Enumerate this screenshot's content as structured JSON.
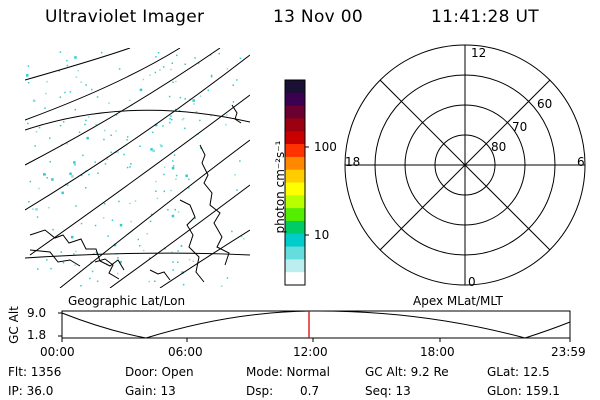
{
  "header": {
    "instrument": "Ultraviolet Imager",
    "date": "13 Nov 00",
    "time": "11:41:28 UT"
  },
  "colorbar": {
    "unit_label": "photon cm⁻²s⁻¹",
    "ticks": [
      "100",
      "10"
    ],
    "colors": [
      "#1a1033",
      "#3b0050",
      "#6a0030",
      "#9a0010",
      "#c80000",
      "#ff3300",
      "#ff8800",
      "#ffcc00",
      "#ffff00",
      "#b8ff00",
      "#55ee00",
      "#00cc66",
      "#00cccc",
      "#66dddd",
      "#bbeeee",
      "#ffffff"
    ]
  },
  "geo_map": {
    "label": "Geographic Lat/Lon",
    "aurora_color": "#33cccc"
  },
  "polar_plot": {
    "label": "Apex MLat/MLT",
    "mlt_labels": {
      "top": "12",
      "left": "18",
      "right": "6",
      "bottom": "0"
    },
    "mlat_labels": [
      "60",
      "70",
      "80"
    ]
  },
  "orbit_plot": {
    "y_axis_label": "GC Alt",
    "y_ticks": [
      "9.0",
      "1.8"
    ],
    "x_ticks": [
      "00:00",
      "06:00",
      "12:00",
      "18:00",
      "23:59"
    ],
    "marker_color": "#dd0000"
  },
  "status": {
    "flt": "Flt: 1356",
    "ip": "IP: 36.0",
    "door": "Door: Open",
    "gain": "Gain: 13",
    "mode": "Mode: Normal",
    "dsp_label": "Dsp:",
    "dsp_value": "0.7",
    "gc_alt": "GC Alt: 9.2 Re",
    "seq": "Seq: 13",
    "glat": "GLat: 12.5",
    "glon": "GLon: 159.1"
  }
}
